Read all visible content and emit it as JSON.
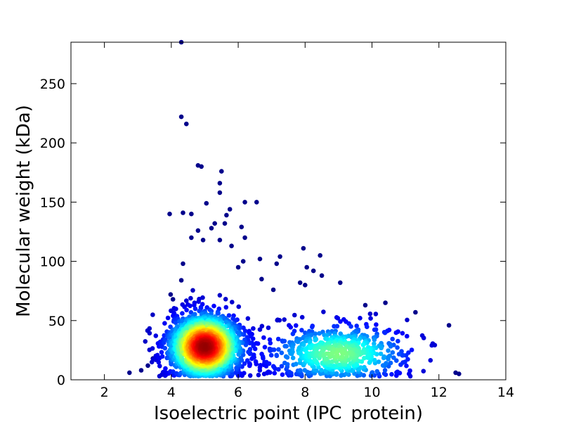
{
  "chart_data": {
    "type": "scatter",
    "title": "",
    "xlabel": "Isoelectric point (IPC_protein)",
    "ylabel": "Molecular weight (kDa)",
    "xlim": [
      1,
      14
    ],
    "ylim": [
      0,
      285
    ],
    "xticks": [
      2,
      4,
      6,
      8,
      10,
      12,
      14
    ],
    "yticks": [
      0,
      50,
      100,
      150,
      200,
      250
    ],
    "grid": false,
    "colormap": "jet (point density)",
    "clusters": [
      {
        "center": [
          5.0,
          28
        ],
        "spread": [
          0.55,
          14
        ],
        "count": 1900
      },
      {
        "center": [
          9.0,
          22
        ],
        "spread": [
          1.1,
          13
        ],
        "count": 650
      }
    ],
    "outliers": [
      [
        4.3,
        285
      ],
      [
        4.3,
        222
      ],
      [
        4.45,
        216
      ],
      [
        4.8,
        181
      ],
      [
        4.9,
        180
      ],
      [
        5.5,
        176
      ],
      [
        5.45,
        166
      ],
      [
        5.45,
        158
      ],
      [
        5.05,
        149
      ],
      [
        6.2,
        150
      ],
      [
        6.55,
        150
      ],
      [
        4.35,
        141
      ],
      [
        4.6,
        140
      ],
      [
        3.95,
        140
      ],
      [
        5.75,
        144
      ],
      [
        5.65,
        139
      ],
      [
        6.1,
        129
      ],
      [
        5.6,
        132
      ],
      [
        6.2,
        120
      ],
      [
        5.3,
        132
      ],
      [
        5.2,
        128
      ],
      [
        4.8,
        126
      ],
      [
        4.6,
        120
      ],
      [
        4.95,
        118
      ],
      [
        5.45,
        118
      ],
      [
        5.8,
        113
      ],
      [
        6.65,
        102
      ],
      [
        7.15,
        98
      ],
      [
        7.25,
        104
      ],
      [
        7.95,
        111
      ],
      [
        8.45,
        105
      ],
      [
        6.15,
        100
      ],
      [
        6.0,
        95
      ],
      [
        8.05,
        95
      ],
      [
        8.25,
        92
      ],
      [
        8.5,
        88
      ],
      [
        9.05,
        82
      ],
      [
        7.85,
        82
      ],
      [
        8.0,
        80
      ],
      [
        4.35,
        98
      ],
      [
        4.3,
        84
      ],
      [
        3.98,
        72
      ],
      [
        4.05,
        68
      ],
      [
        10.4,
        65
      ],
      [
        9.8,
        63
      ],
      [
        11.3,
        57
      ],
      [
        12.3,
        46
      ],
      [
        12.6,
        5
      ],
      [
        12.5,
        6
      ],
      [
        2.75,
        6
      ],
      [
        3.1,
        8
      ],
      [
        3.3,
        12
      ],
      [
        3.45,
        18
      ],
      [
        6.7,
        85
      ],
      [
        7.05,
        76
      ]
    ],
    "point_color": "#00008b"
  }
}
